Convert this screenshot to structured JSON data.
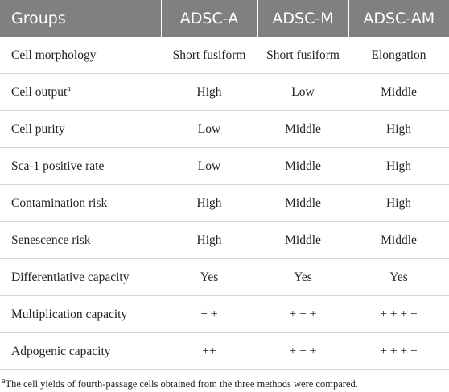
{
  "table": {
    "header": [
      "Groups",
      "ADSC-A",
      "ADSC-M",
      "ADSC-AM"
    ],
    "rows": [
      [
        "Cell morphology",
        "Short fusiform",
        "Short fusiform",
        "Elongation"
      ],
      [
        "Cell output",
        "High",
        "Low",
        "Middle"
      ],
      [
        "Cell purity",
        "Low",
        "Middle",
        "High"
      ],
      [
        "Sca-1 positive rate",
        "Low",
        "Middle",
        "High"
      ],
      [
        "Contamination risk",
        "High",
        "Middle",
        "High"
      ],
      [
        "Senescence risk",
        "High",
        "Middle",
        "Middle"
      ],
      [
        "Differentiative capacity",
        "Yes",
        "Yes",
        "Yes"
      ],
      [
        "Multiplication capacity",
        "+ +",
        "+ + +",
        "+ + + +"
      ],
      [
        "Adpogenic capacity",
        "++",
        "+ + +",
        "+ + + +"
      ]
    ]
  },
  "footnote": {
    "marker": "a",
    "text": "The cell yields of fourth-passage cells obtained from the three methods were compared."
  }
}
